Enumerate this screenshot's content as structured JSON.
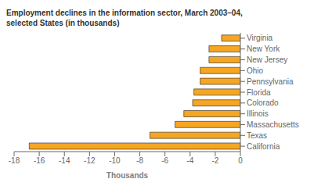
{
  "chart_data": {
    "type": "bar",
    "orientation": "horizontal",
    "title": "Employment declines in the information sector, March 2003–04,\nselected States (in thousands)",
    "categories": [
      "Virginia",
      "New York",
      "New Jersey",
      "Ohio",
      "Pennsylvania",
      "Florida",
      "Colorado",
      "Illinois",
      "Massachusetts",
      "Texas",
      "California"
    ],
    "values": [
      -1.5,
      -2.5,
      -2.5,
      -3.2,
      -3.2,
      -3.7,
      -3.8,
      -4.5,
      -5.2,
      -7.2,
      -16.8
    ],
    "color": "#F5A623",
    "xlim": [
      -18,
      0
    ],
    "xticks": [
      -18,
      -16,
      -14,
      -12,
      -10,
      -8,
      -6,
      -4,
      -2,
      0
    ],
    "xlabel": "Thousands",
    "grid": false
  }
}
